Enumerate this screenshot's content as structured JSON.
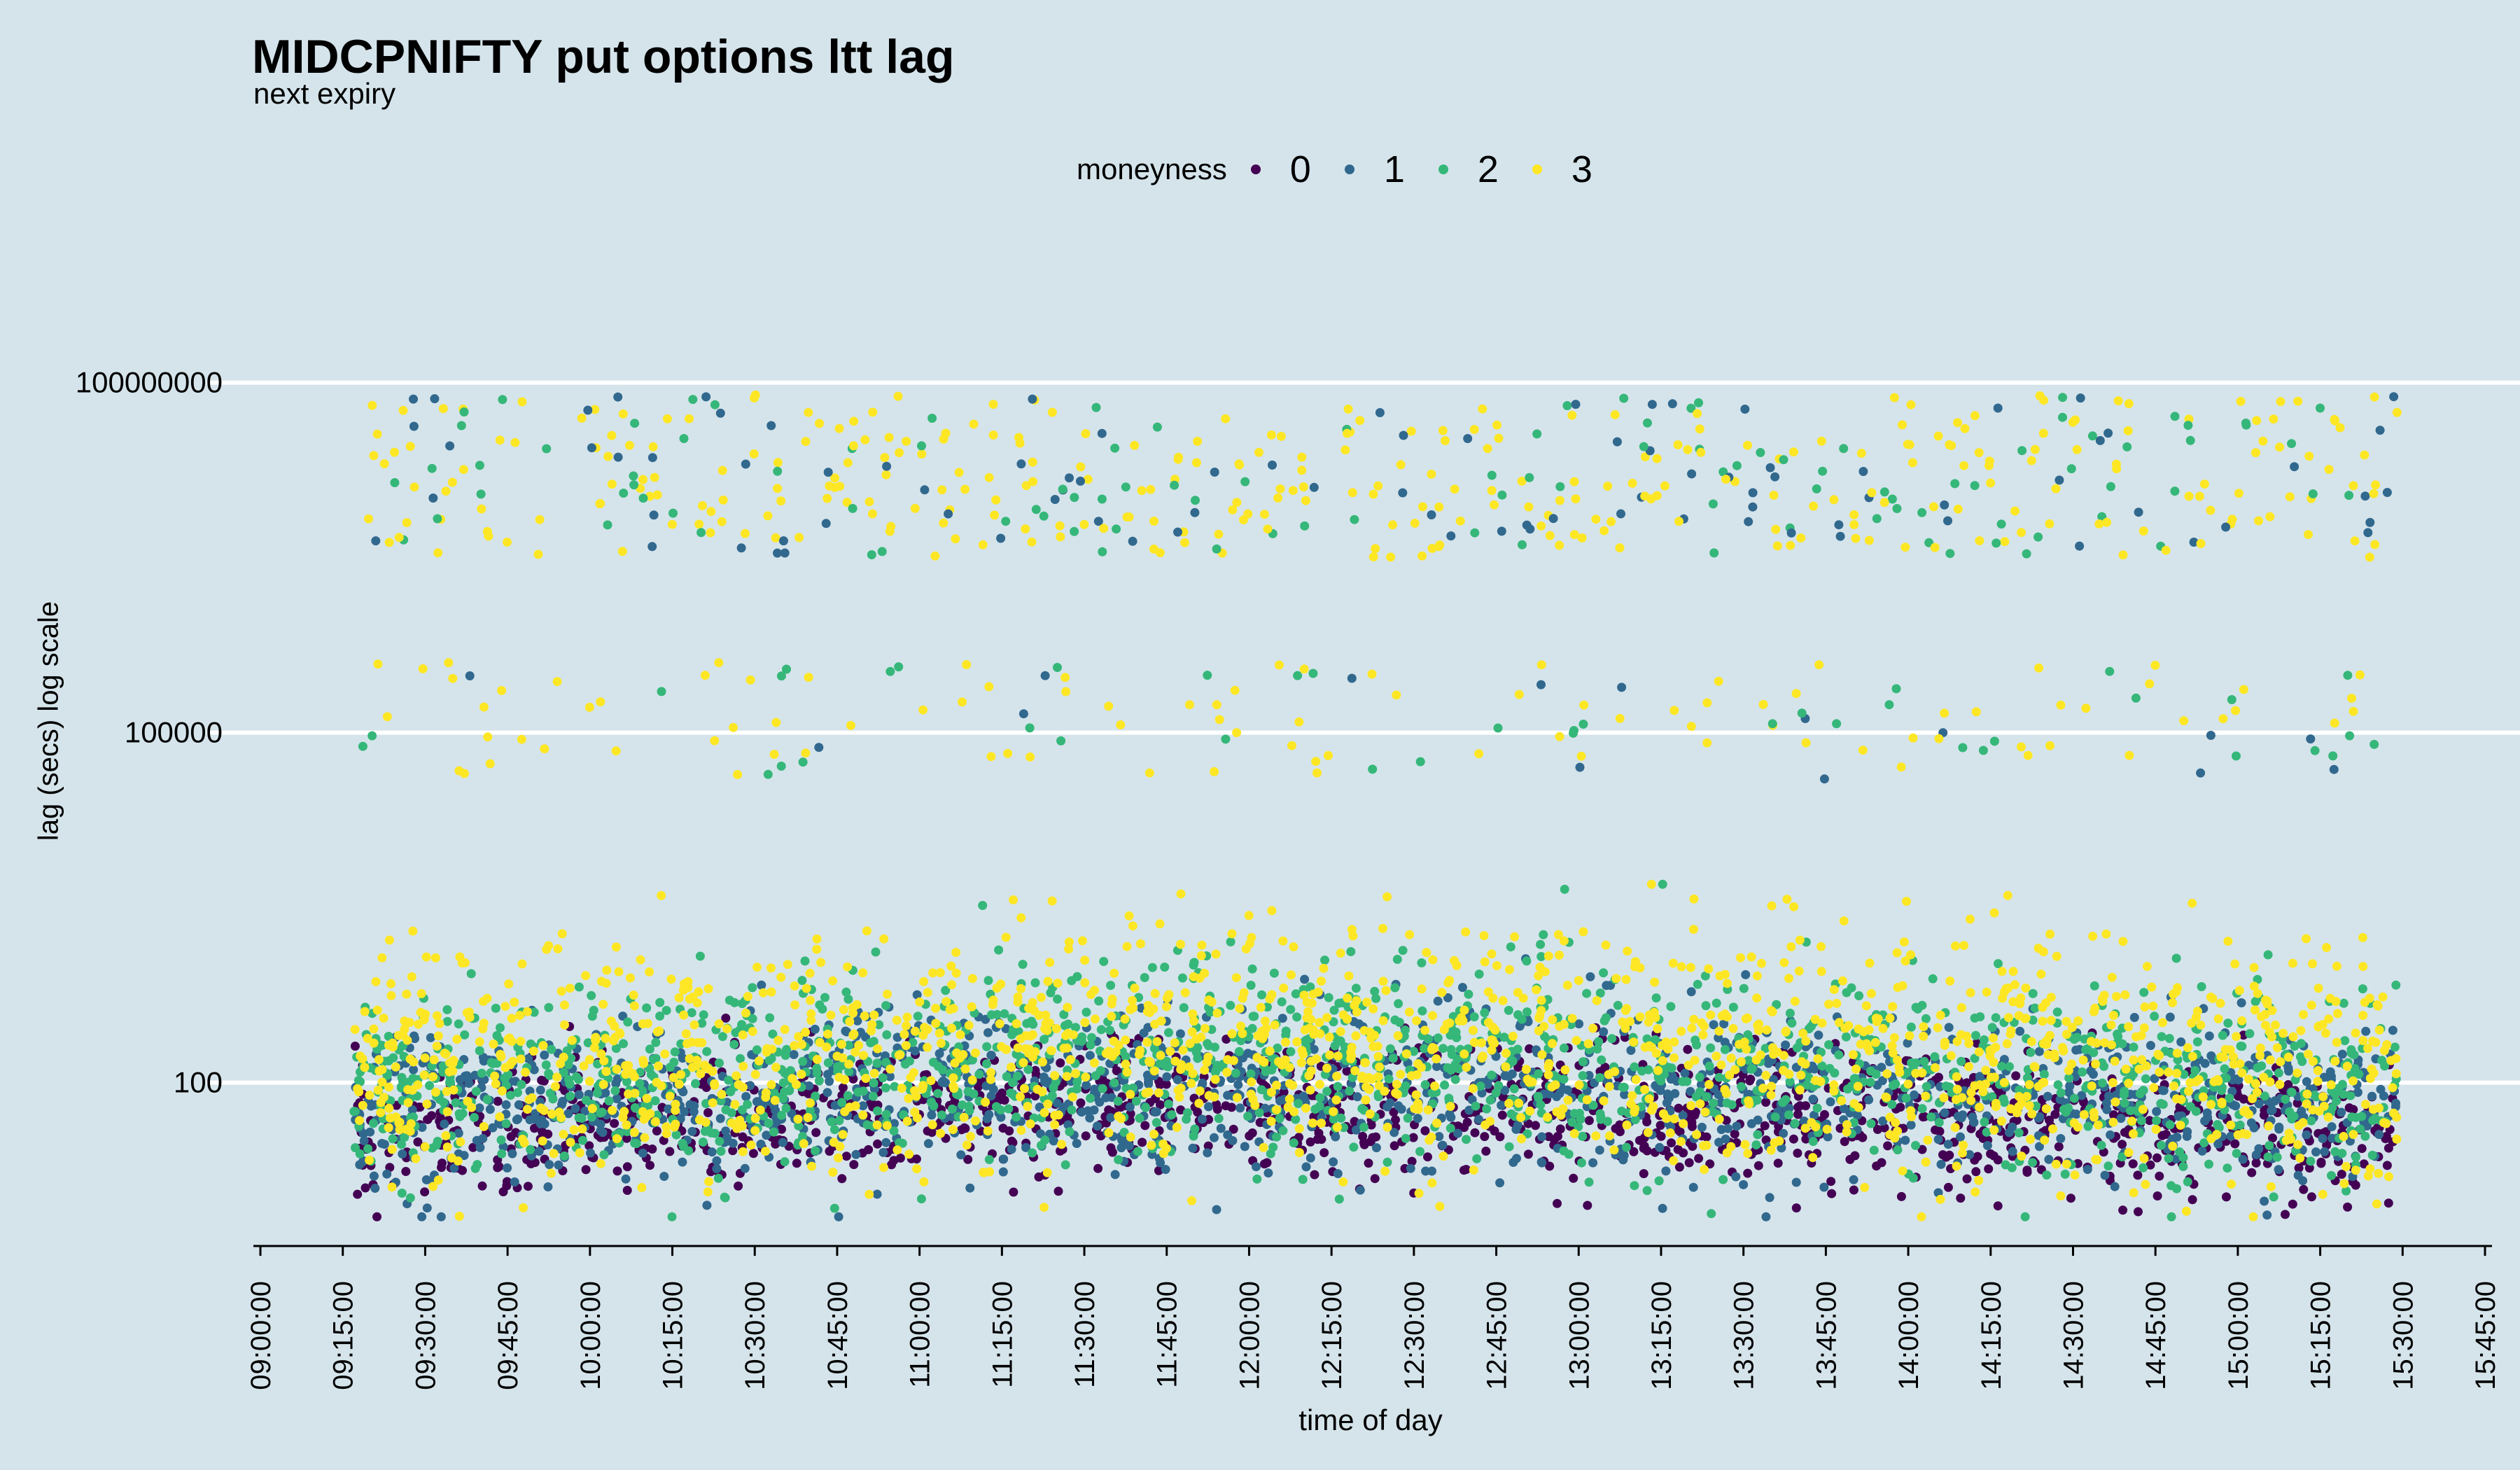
{
  "chart_data": {
    "type": "scatter",
    "title": "MIDCPNIFTY put options ltt lag",
    "subtitle": "next expiry",
    "xlabel": "time of day",
    "ylabel": "lag (secs) log scale",
    "y_scale": "log10",
    "ylim": [
      1,
      100000000
    ],
    "y_ticks": [
      "100",
      "100000",
      "100000000"
    ],
    "x_ticks": [
      "09:00:00",
      "09:15:00",
      "09:30:00",
      "09:45:00",
      "10:00:00",
      "10:15:00",
      "10:30:00",
      "10:45:00",
      "11:00:00",
      "11:15:00",
      "11:30:00",
      "11:45:00",
      "12:00:00",
      "12:15:00",
      "12:30:00",
      "12:45:00",
      "13:00:00",
      "13:15:00",
      "13:30:00",
      "13:45:00",
      "14:00:00",
      "14:15:00",
      "14:30:00",
      "14:45:00",
      "15:00:00",
      "15:15:00",
      "15:30:00",
      "15:45:00"
    ],
    "xlim": [
      "09:00:00",
      "15:45:00"
    ],
    "data_range_x": [
      "09:17:00",
      "15:29:00"
    ],
    "grid": "horizontal major lines only",
    "legend": {
      "title": "moneyness",
      "position": "top",
      "entries": [
        {
          "label": "0",
          "color": "#440154"
        },
        {
          "label": "1",
          "color": "#31688e"
        },
        {
          "label": "2",
          "color": "#35b779"
        },
        {
          "label": "3",
          "color": "#fde725"
        }
      ]
    },
    "series": [
      {
        "name": "0",
        "typical_lag_range_secs": [
          8,
          150
        ],
        "color": "#440154"
      },
      {
        "name": "1",
        "typical_lag_range_secs": [
          8,
          600
        ],
        "color": "#31688e"
      },
      {
        "name": "2",
        "typical_lag_range_secs": [
          5,
          1500
        ],
        "color": "#35b779"
      },
      {
        "name": "3",
        "typical_lag_range_secs": [
          5,
          3000
        ],
        "color": "#fde725"
      }
    ],
    "clusters": [
      {
        "description": "dense band",
        "lag_range_secs": [
          8,
          3000
        ]
      },
      {
        "description": "upper band",
        "lag_range_secs": [
          3000000,
          80000000
        ]
      },
      {
        "description": "middle band",
        "lag_range_secs": [
          30000,
          300000
        ]
      }
    ]
  }
}
